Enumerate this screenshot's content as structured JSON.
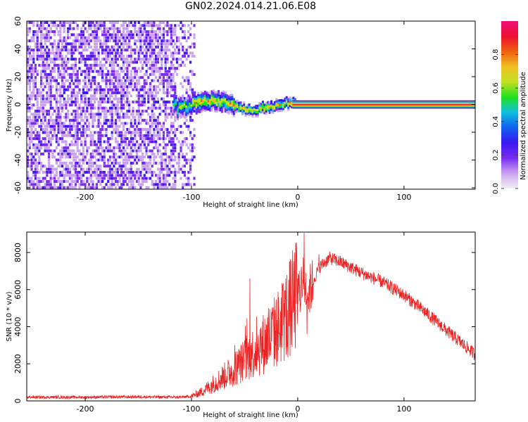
{
  "title": "GN02.2024.014.21.06.E08",
  "colors": {
    "background": "#ffffff",
    "axis": "#000000",
    "snr_line": "#ee2222",
    "colormap": [
      "#f0f0f0",
      "#c9a3f0",
      "#7a2cf0",
      "#3a18f0",
      "#1060f0",
      "#10c0e0",
      "#20e020",
      "#c0e020",
      "#f0c020",
      "#f06010",
      "#ee1030",
      "#f0107a"
    ]
  },
  "chart_data": [
    {
      "type": "heatmap",
      "title": "",
      "xlabel": "Height of straight line (km)",
      "ylabel": "Frequency (Hz)",
      "xlim": [
        -255,
        167
      ],
      "ylim": [
        -61,
        60
      ],
      "x_ticks": [
        -200,
        -100,
        0,
        100
      ],
      "x_tick_labels": [
        "-200",
        "-100",
        "0",
        "100"
      ],
      "y_ticks": [
        -60,
        -40,
        -20,
        0,
        20,
        40,
        60
      ],
      "y_tick_labels": [
        "-60",
        "-40",
        "-20",
        "0",
        "20",
        "40",
        "60"
      ],
      "colorbar": {
        "label": "Normalized spectral amplitude",
        "range": [
          0.0,
          1.0
        ],
        "ticks": [
          0.0,
          0.2,
          0.4,
          0.6,
          0.8
        ],
        "tick_labels": [
          "0.0",
          "0.2",
          "0.4",
          "0.6",
          "0.8"
        ]
      },
      "regions": [
        {
          "name": "broadband noise",
          "x_range": [
            -255,
            -98
          ],
          "freq_range": [
            -60,
            60
          ],
          "amplitude": 0.25
        },
        {
          "name": "onset signal",
          "x_range": [
            -115,
            -5
          ],
          "freq_center": 2,
          "freq_halfwidth": 6,
          "amplitude": 0.6
        },
        {
          "name": "steady tone",
          "x_range": [
            -5,
            167
          ],
          "freq_center": 0,
          "freq_halfwidth": 2,
          "amplitude": 0.95
        }
      ],
      "signal_trace": {
        "x": [
          -115,
          -105,
          -95,
          -85,
          -75,
          -65,
          -55,
          -45,
          -35,
          -25,
          -15,
          -5,
          0
        ],
        "freq": [
          -3,
          -1,
          2,
          1,
          3,
          0,
          -2,
          -4,
          -3,
          -1,
          0,
          1,
          0
        ]
      }
    },
    {
      "type": "line",
      "title": "",
      "xlabel": "Height of straight line (km)",
      "ylabel": "SNR (10 * v/v)",
      "xlim": [
        -255,
        167
      ],
      "ylim": [
        0,
        9100
      ],
      "x_ticks": [
        -200,
        -100,
        0,
        100
      ],
      "x_tick_labels": [
        "-200",
        "-100",
        "0",
        "100"
      ],
      "y_ticks": [
        0,
        2000,
        4000,
        6000,
        8000
      ],
      "y_tick_labels": [
        "0",
        "2000",
        "4000",
        "6000",
        "8000"
      ],
      "series": [
        {
          "x": [
            -255,
            -200,
            -150,
            -110,
            -100,
            -90,
            -80,
            -70,
            -60,
            -50,
            -40,
            -30,
            -20,
            -10,
            0,
            5,
            10,
            20,
            30,
            40,
            50,
            60,
            80,
            100,
            120,
            140,
            167
          ],
          "y": [
            200,
            200,
            220,
            200,
            250,
            500,
            900,
            1300,
            1700,
            2200,
            2700,
            3200,
            3800,
            4700,
            5800,
            6500,
            5800,
            7200,
            7700,
            7500,
            7200,
            6900,
            6400,
            5700,
            4800,
            3800,
            2500
          ]
        }
      ],
      "peaks": [
        {
          "x": 6,
          "y": 9050
        },
        {
          "x": -45,
          "y": 6600
        },
        {
          "x": 20,
          "y": 7900
        }
      ]
    }
  ]
}
